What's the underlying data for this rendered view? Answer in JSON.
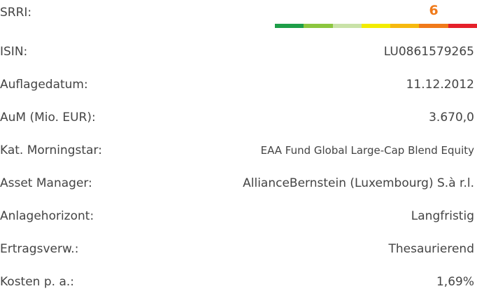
{
  "rows": [
    {
      "label": "SRRI:",
      "value": 6
    },
    {
      "label": "ISIN:",
      "value": "LU0861579265"
    },
    {
      "label": "Auflagedatum:",
      "value": "11.12.2012"
    },
    {
      "label": "AuM (Mio. EUR):",
      "value": "3.670,0"
    },
    {
      "label": "Kat. Morningstar:",
      "value": "EAA Fund Global Large-Cap Blend Equity"
    },
    {
      "label": "Asset Manager:",
      "value": "AllianceBernstein (Luxembourg) S.à r.l."
    },
    {
      "label": "Anlagehorizont:",
      "value": "Langfristig"
    },
    {
      "label": "Ertragsverw.:",
      "value": "Thesaurierend"
    },
    {
      "label": "Kosten p. a.:",
      "value": "1,69%"
    }
  ]
}
